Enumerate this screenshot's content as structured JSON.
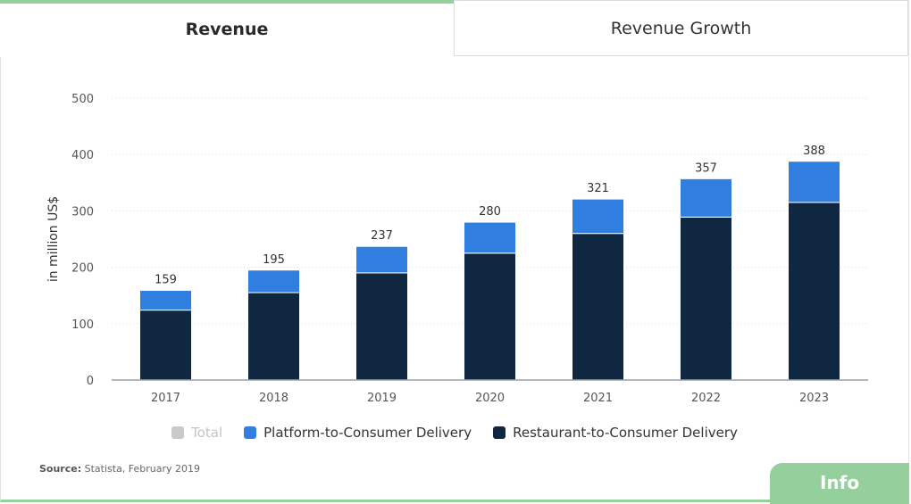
{
  "tabs": [
    {
      "label": "Revenue",
      "active": true
    },
    {
      "label": "Revenue Growth",
      "active": false
    }
  ],
  "chart_data": {
    "type": "bar",
    "stacked": true,
    "categories": [
      "2017",
      "2018",
      "2019",
      "2020",
      "2021",
      "2022",
      "2023"
    ],
    "series": [
      {
        "name": "Restaurant-to-Consumer Delivery",
        "color": "#0f2740",
        "values": [
          124,
          155,
          190,
          225,
          260,
          289,
          315
        ]
      },
      {
        "name": "Platform-to-Consumer Delivery",
        "color": "#2f7ee0",
        "values": [
          35,
          40,
          47,
          55,
          61,
          68,
          73
        ]
      }
    ],
    "totals": [
      "159",
      "195",
      "237",
      "280",
      "321",
      "357",
      "388"
    ],
    "ylabel": "in million US$",
    "ylim": [
      0,
      500
    ],
    "yticks": [
      0,
      100,
      200,
      300,
      400,
      500
    ],
    "grid": true
  },
  "legend": {
    "items": [
      {
        "label": "Total",
        "color": "#c9c9c9",
        "disabled": true
      },
      {
        "label": "Platform-to-Consumer Delivery",
        "color": "#2f7ee0",
        "disabled": false
      },
      {
        "label": "Restaurant-to-Consumer Delivery",
        "color": "#0f2740",
        "disabled": false
      }
    ]
  },
  "source": {
    "label": "Source:",
    "text": " Statista, February 2019"
  },
  "info_button": {
    "label": "Info"
  }
}
